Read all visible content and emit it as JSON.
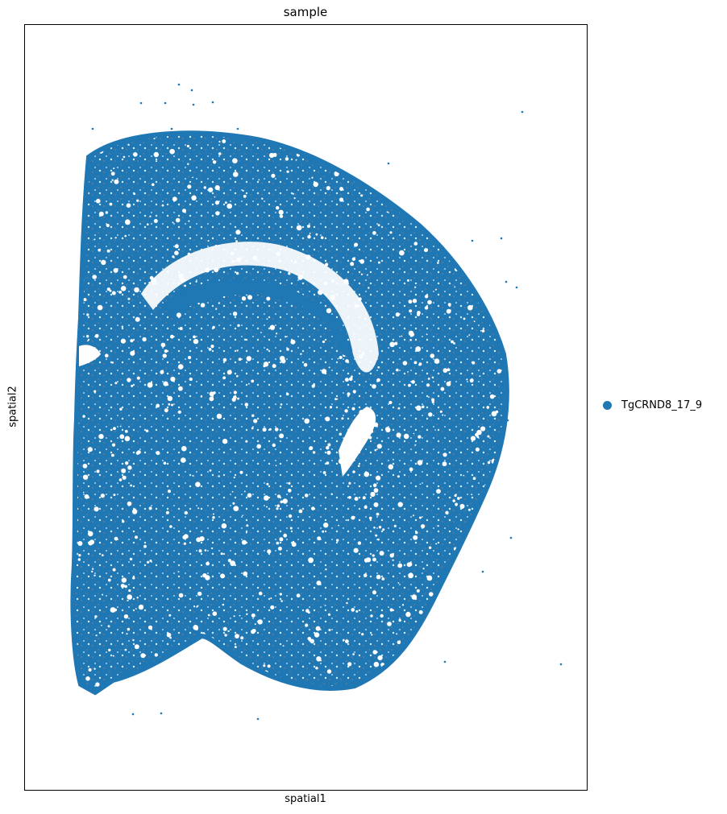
{
  "colors": {
    "series": "#1f77b4",
    "axes": "#000000",
    "background": "#ffffff",
    "speckle": "#5a7a98"
  },
  "chart_data": {
    "type": "scatter",
    "title": "sample",
    "xlabel": "spatial1",
    "ylabel": "spatial2",
    "grid": false,
    "ticks": "none",
    "legend": "right-outside",
    "categories": [
      "TgCRND8_17_9"
    ],
    "series": [
      {
        "name": "TgCRND8_17_9",
        "color": "#1f77b4",
        "description_points": "dense spatial cell coordinates forming a coronal brain hemisphere section"
      }
    ]
  }
}
